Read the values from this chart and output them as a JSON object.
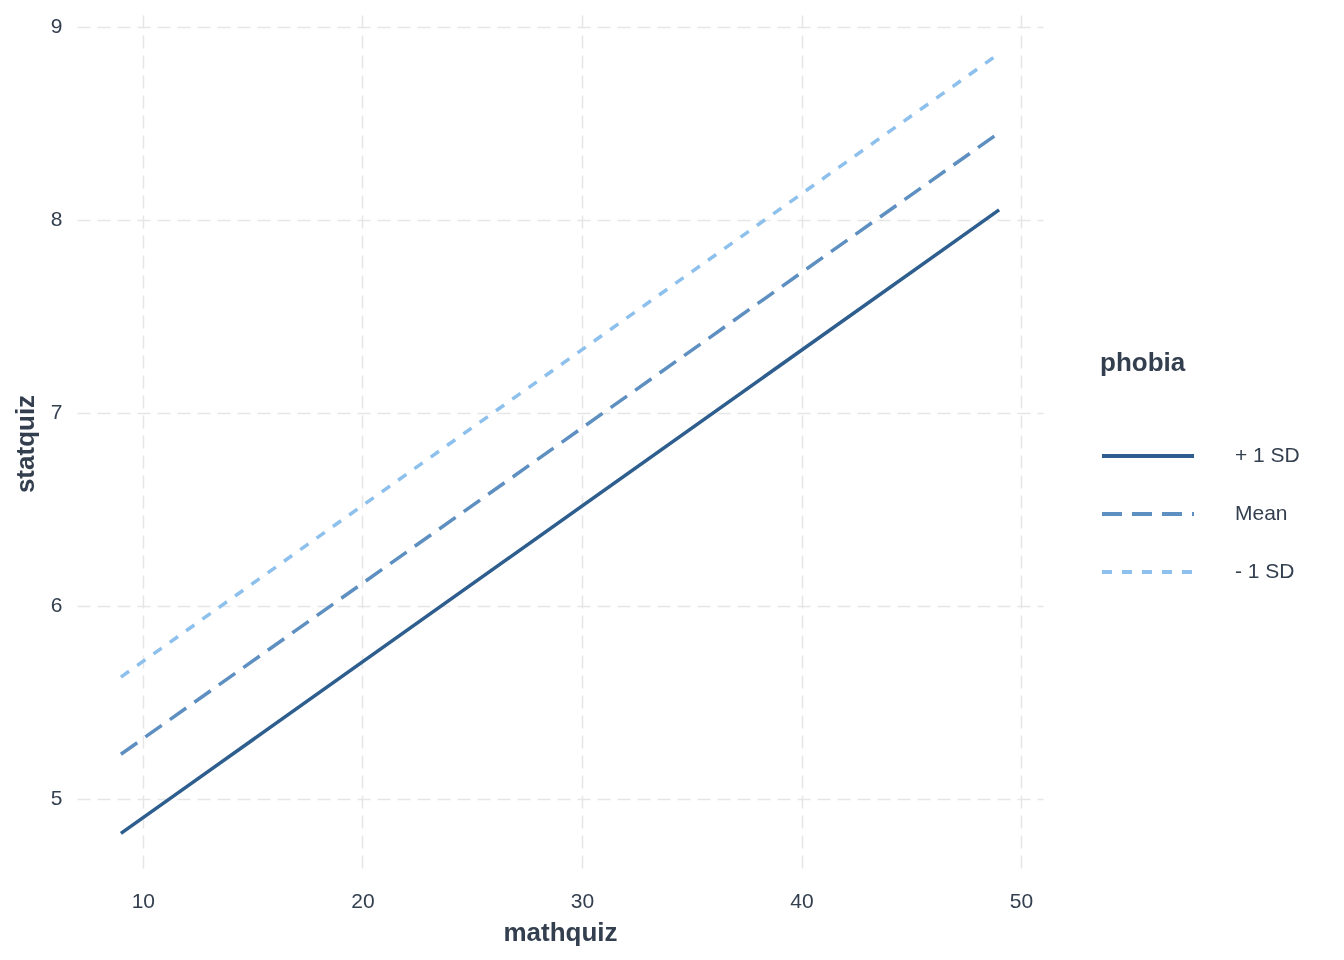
{
  "chart_data": {
    "type": "line",
    "xlabel": "mathquiz",
    "ylabel": "statquiz",
    "legend_title": "phobia",
    "x": [
      9,
      49
    ],
    "series": [
      {
        "name": "+ 1 SD",
        "color": "#2e5e8e",
        "line_style": "solid",
        "values": [
          4.82,
          8.05
        ]
      },
      {
        "name": "Mean",
        "color": "#5e8fc1",
        "line_style": "dashed",
        "values": [
          5.23,
          8.45
        ]
      },
      {
        "name": "- 1 SD",
        "color": "#8dc0ec",
        "line_style": "dotted",
        "values": [
          5.63,
          8.86
        ]
      }
    ],
    "xlim": [
      7,
      51
    ],
    "ylim": [
      4.62,
      9.06
    ],
    "xticks": [
      10,
      20,
      30,
      40,
      50
    ],
    "yticks": [
      5,
      6,
      7,
      8,
      9
    ],
    "grid": true,
    "legend": "right"
  }
}
